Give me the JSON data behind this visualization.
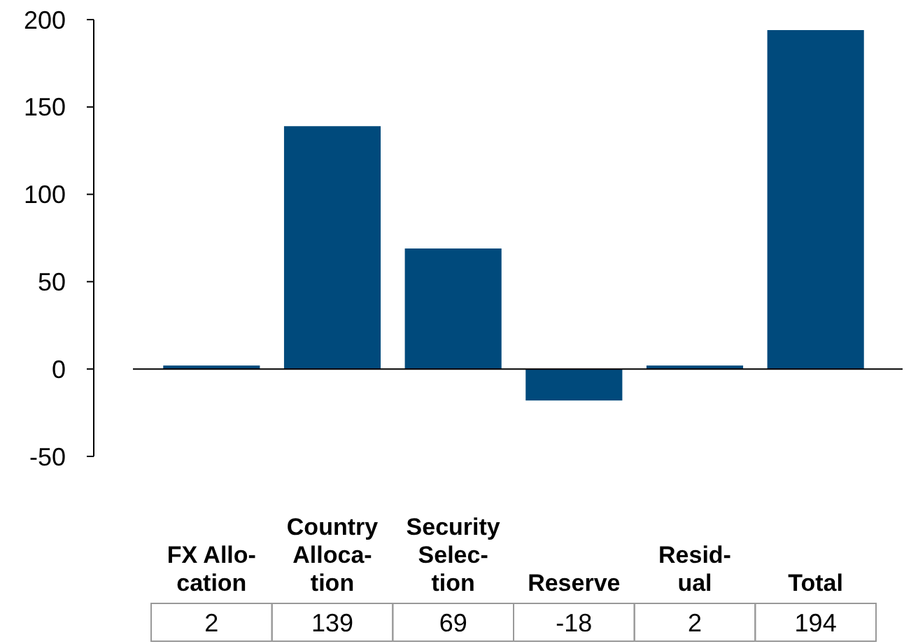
{
  "chart_data": {
    "type": "bar",
    "categories": [
      "FX Allo-\ncation",
      "Country\nAlloca-\ntion",
      "Security\nSelec-\ntion",
      "Reserve",
      "Resid-\nual",
      "Total"
    ],
    "values": [
      2,
      139,
      69,
      -18,
      2,
      194
    ],
    "color": "#004a7c",
    "ylim": [
      -50,
      200
    ],
    "yticks": [
      -50,
      0,
      50,
      100,
      150,
      200
    ],
    "data_labels": true
  }
}
